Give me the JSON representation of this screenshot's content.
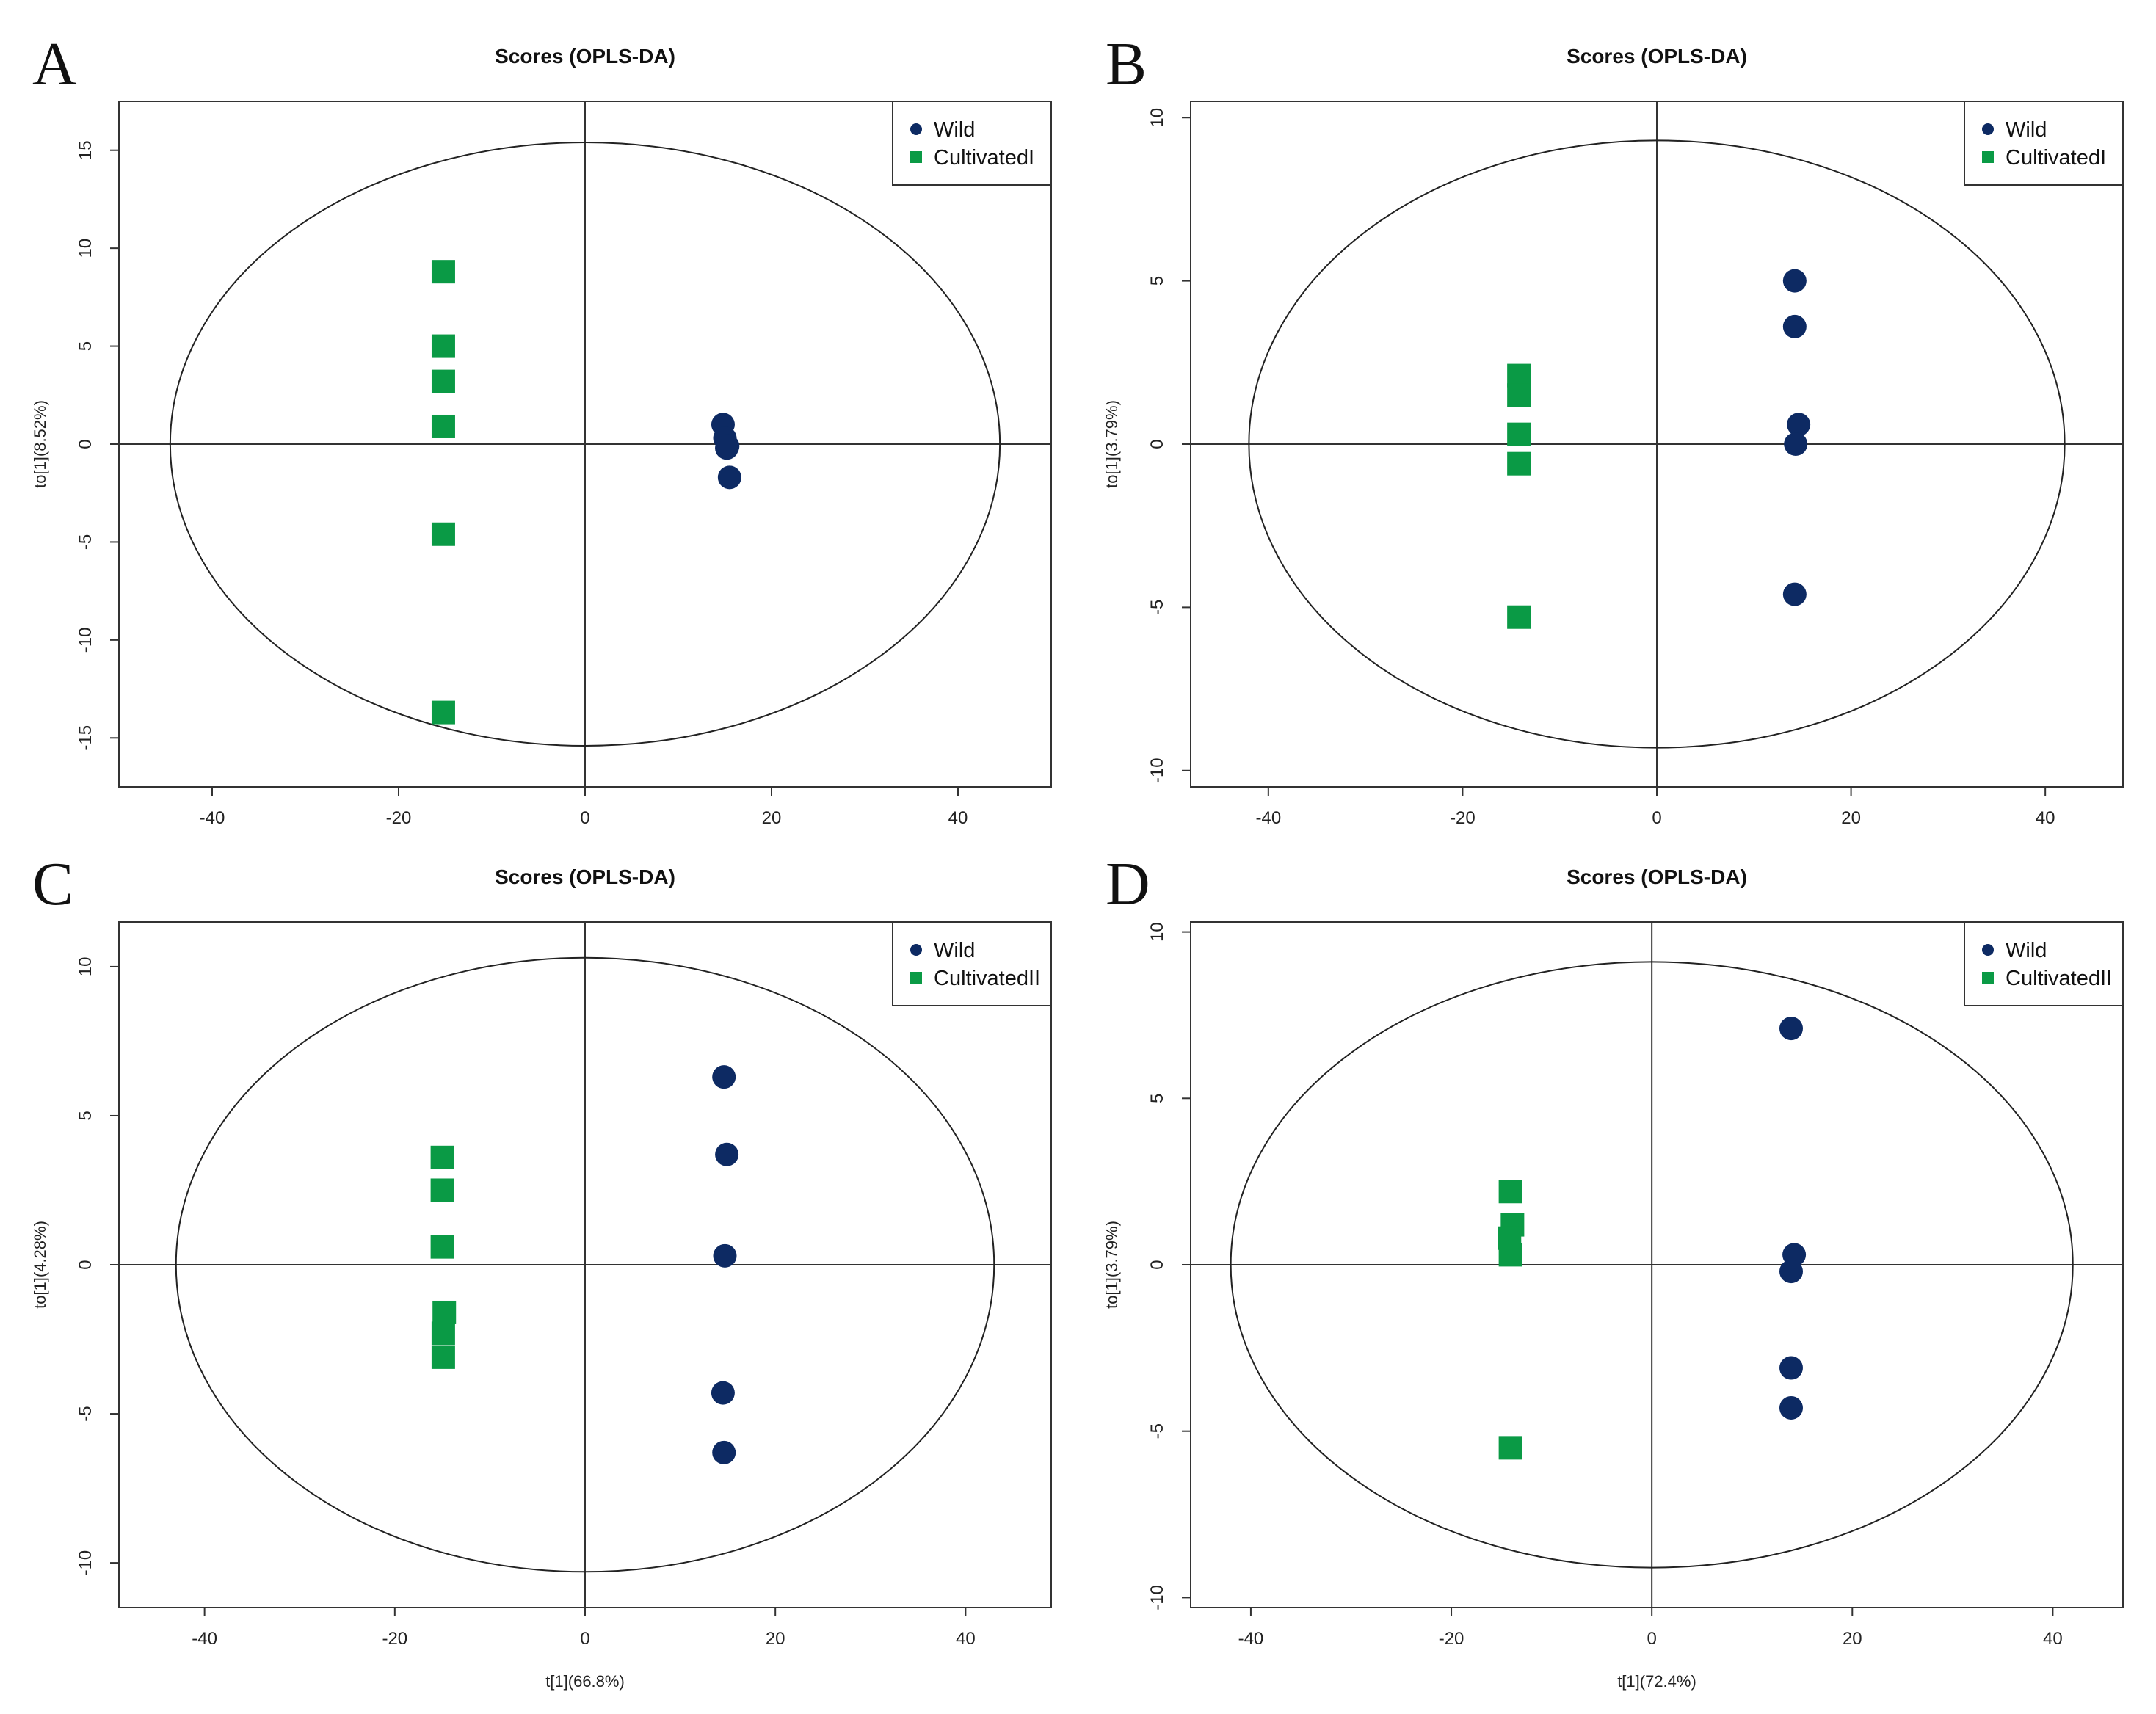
{
  "figure_note": "OPLS-DA score plots comparing Wild with Cultivated groups",
  "colors": {
    "wild": "#0d2a63",
    "cultivated": "#0a9a45",
    "line": "#333333"
  },
  "chart_data": [
    {
      "type": "scatter",
      "panel": "A",
      "title": "Scores (OPLS-DA)",
      "xlabel": "",
      "ylabel": "to[1](8.52%)",
      "xlim": [
        -50,
        50
      ],
      "ylim": [
        -17.5,
        17.5
      ],
      "xticks": [
        -40,
        -20,
        0,
        20,
        40
      ],
      "yticks": [
        -15,
        -10,
        -5,
        0,
        5,
        10,
        15
      ],
      "ellipse": {
        "rx": 44.5,
        "ry": 15.4
      },
      "legend_position": "top-right",
      "series": [
        {
          "name": "Wild",
          "marker": "circle",
          "points": [
            [
              14.8,
              1.0
            ],
            [
              15.0,
              0.3
            ],
            [
              15.2,
              -0.2
            ],
            [
              15.3,
              -0.1
            ],
            [
              15.5,
              -1.7
            ]
          ]
        },
        {
          "name": "CultivatedI",
          "marker": "square",
          "points": [
            [
              -15.2,
              8.8
            ],
            [
              -15.2,
              5.0
            ],
            [
              -15.2,
              3.2
            ],
            [
              -15.2,
              0.9
            ],
            [
              -15.2,
              -4.6
            ],
            [
              -15.2,
              -13.7
            ]
          ]
        }
      ]
    },
    {
      "type": "scatter",
      "panel": "B",
      "title": "Scores (OPLS-DA)",
      "xlabel": "",
      "ylabel": "to[1](3.79%)",
      "xlim": [
        -48,
        48
      ],
      "ylim": [
        -10.5,
        10.5
      ],
      "xticks": [
        -40,
        -20,
        0,
        20,
        40
      ],
      "yticks": [
        -10,
        -5,
        0,
        5,
        10
      ],
      "ellipse": {
        "rx": 42,
        "ry": 9.3
      },
      "legend_position": "top-right",
      "series": [
        {
          "name": "Wild",
          "marker": "circle",
          "points": [
            [
              14.2,
              5.0
            ],
            [
              14.2,
              3.6
            ],
            [
              14.6,
              0.6
            ],
            [
              14.3,
              0.0
            ],
            [
              14.2,
              -4.6
            ]
          ]
        },
        {
          "name": "CultivatedI",
          "marker": "square",
          "points": [
            [
              -14.2,
              2.1
            ],
            [
              -14.2,
              1.5
            ],
            [
              -14.2,
              0.3
            ],
            [
              -14.2,
              -0.6
            ],
            [
              -14.2,
              -5.3
            ]
          ]
        }
      ]
    },
    {
      "type": "scatter",
      "panel": "C",
      "title": "Scores (OPLS-DA)",
      "xlabel": "t[1](66.8%)",
      "ylabel": "to[1](4.28%)",
      "xlim": [
        -49,
        49
      ],
      "ylim": [
        -11.5,
        11.5
      ],
      "xticks": [
        -40,
        -20,
        0,
        20,
        40
      ],
      "yticks": [
        -10,
        -5,
        0,
        5,
        10
      ],
      "ellipse": {
        "rx": 43,
        "ry": 10.3
      },
      "legend_position": "top-right",
      "series": [
        {
          "name": "Wild",
          "marker": "circle",
          "points": [
            [
              14.6,
              6.3
            ],
            [
              14.9,
              3.7
            ],
            [
              14.7,
              0.3
            ],
            [
              14.5,
              -4.3
            ],
            [
              14.6,
              -6.3
            ]
          ]
        },
        {
          "name": "CultivatedII",
          "marker": "square",
          "points": [
            [
              -15.0,
              3.6
            ],
            [
              -15.0,
              2.5
            ],
            [
              -15.0,
              0.6
            ],
            [
              -14.8,
              -1.6
            ],
            [
              -14.9,
              -2.3
            ],
            [
              -14.9,
              -3.1
            ]
          ]
        }
      ]
    },
    {
      "type": "scatter",
      "panel": "D",
      "title": "Scores (OPLS-DA)",
      "xlabel": "t[1](72.4%)",
      "ylabel": "to[1](3.79%)",
      "xlim": [
        -46,
        47
      ],
      "ylim": [
        -10.3,
        10.3
      ],
      "xticks": [
        -40,
        -20,
        0,
        20,
        40
      ],
      "yticks": [
        -10,
        -5,
        0,
        5,
        10
      ],
      "ellipse": {
        "rx": 42,
        "ry": 9.1
      },
      "legend_position": "top-right",
      "series": [
        {
          "name": "Wild",
          "marker": "circle",
          "points": [
            [
              13.9,
              7.1
            ],
            [
              14.2,
              0.3
            ],
            [
              13.9,
              -0.2
            ],
            [
              13.9,
              -3.1
            ],
            [
              13.9,
              -4.3
            ]
          ]
        },
        {
          "name": "CultivatedII",
          "marker": "square",
          "points": [
            [
              -14.1,
              2.2
            ],
            [
              -13.9,
              1.2
            ],
            [
              -14.2,
              0.8
            ],
            [
              -14.1,
              0.3
            ],
            [
              -14.1,
              -5.5
            ]
          ]
        }
      ]
    }
  ]
}
